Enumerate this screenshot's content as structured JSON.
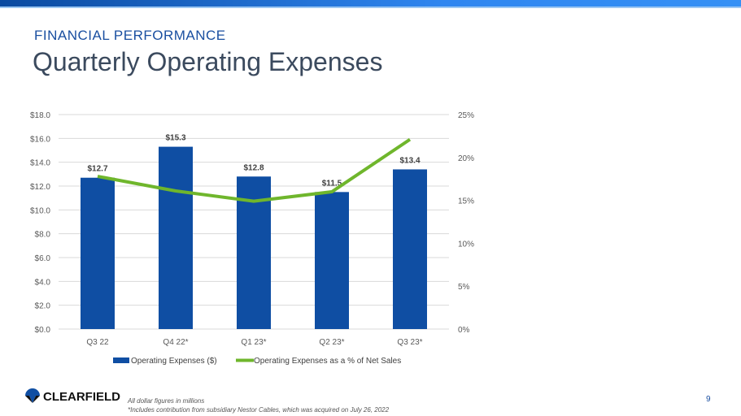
{
  "header": {
    "kicker": "FINANCIAL PERFORMANCE",
    "title": "Quarterly Operating Expenses"
  },
  "chart_data": {
    "type": "bar",
    "categories": [
      "Q3 22",
      "Q4 22*",
      "Q1 23*",
      "Q2 23*",
      "Q3 23*"
    ],
    "series": [
      {
        "name": "Operating Expenses ($)",
        "type": "bar",
        "axis": "left",
        "values": [
          12.7,
          15.3,
          12.8,
          11.5,
          13.4
        ],
        "labels": [
          "$12.7",
          "$15.3",
          "$12.8",
          "$11.5",
          "$13.4"
        ],
        "color": "#0f4ea3"
      },
      {
        "name": "Operating Expenses as a % of Net Sales",
        "type": "line",
        "axis": "right",
        "values": [
          17.8,
          16.1,
          14.9,
          16.0,
          22.1
        ],
        "color": "#6fb62c"
      }
    ],
    "left_axis": {
      "ylim": [
        0,
        18
      ],
      "ticks": [
        "$0.0",
        "$2.0",
        "$4.0",
        "$6.0",
        "$8.0",
        "$10.0",
        "$12.0",
        "$14.0",
        "$16.0",
        "$18.0"
      ]
    },
    "right_axis": {
      "ylim": [
        0,
        25
      ],
      "ticks": [
        "0%",
        "5%",
        "10%",
        "15%",
        "20%",
        "25%"
      ]
    },
    "grid": true,
    "legend": "bottom"
  },
  "footer": {
    "logo": "CLEARFIELD",
    "note1": "All dollar figures in millions",
    "note2": "*Includes contribution from subsidiary Nestor Cables, which was acquired on July 26, 2022",
    "page": "9"
  }
}
